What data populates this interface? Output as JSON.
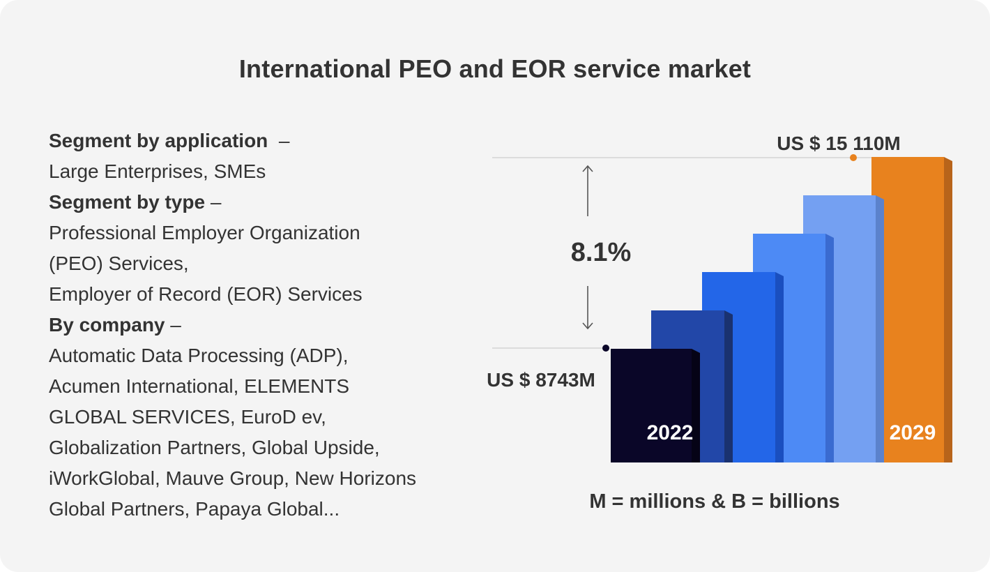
{
  "title": "International PEO and EOR service market",
  "segments": [
    {
      "heading": "Segment by application",
      "dash": "–",
      "lines": [
        "Large Enterprises, SMEs"
      ]
    },
    {
      "heading": "Segment by type",
      "dash": "–",
      "lines": [
        "Professional Employer Organization",
        "(PEO) Services,",
        "Employer of Record (EOR) Services"
      ]
    },
    {
      "heading": "By company",
      "dash": "–",
      "lines": [
        "Automatic Data Processing (ADP),",
        "Acumen International, ELEMENTS",
        "GLOBAL SERVICES, EuroD ev,",
        "Globalization Partners, Global Upside,",
        "iWorkGlobal, Mauve Group, New Horizons",
        "Global Partners, Papaya Global..."
      ]
    }
  ],
  "chart_data": {
    "type": "bar",
    "categories": [
      "2022",
      "",
      "",
      "",
      "",
      "2029"
    ],
    "start": {
      "year": "2022",
      "value": 8743,
      "label": "US $ 8743M"
    },
    "end": {
      "year": "2029",
      "value": 15110,
      "label": "US $ 15 110M"
    },
    "growth_label": "8.1%",
    "unit_note": "M = millions & B = billions",
    "colors": [
      "#0a0628",
      "#2247a8",
      "#2366e8",
      "#4d8af5",
      "#74a0f2",
      "#e8821e"
    ],
    "side_colors": [
      "#050316",
      "#1a3270",
      "#1a4fbf",
      "#3a6bd0",
      "#5b82cc",
      "#b8641a"
    ]
  }
}
